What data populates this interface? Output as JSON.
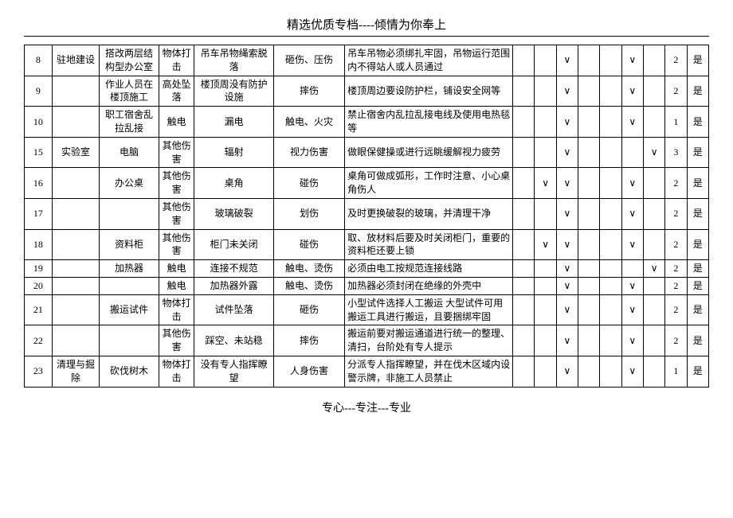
{
  "header": "精选优质专档----倾情为你奉上",
  "footer": "专心---专注---专业",
  "rows": [
    {
      "no": "8",
      "area": "驻地建设",
      "obj": "搭改两层结构型办公室",
      "type": "物体打击",
      "cause": "吊车吊物绳索脱落",
      "result": "砸伤、压伤",
      "measure": "吊车吊物必须绑扎牢固，吊物运行范围内不得站人或人员通过",
      "m": [
        "",
        "∨",
        "",
        "",
        "∨",
        "",
        "2",
        "是"
      ]
    },
    {
      "no": "9",
      "area": "",
      "obj": "作业人员在楼顶施工",
      "type": "高处坠落",
      "cause": "楼顶周没有防护设施",
      "result": "摔伤",
      "measure": "楼顶周边要设防护栏，铺设安全网等",
      "m": [
        "",
        "∨",
        "",
        "",
        "∨",
        "",
        "2",
        "是"
      ]
    },
    {
      "no": "10",
      "area": "",
      "obj": "职工宿舍乱拉乱接",
      "type": "触电",
      "cause": "漏电",
      "result": "触电、火灾",
      "measure": "禁止宿舍内乱拉乱接电线及使用电热毯等",
      "m": [
        "",
        "∨",
        "",
        "",
        "∨",
        "",
        "1",
        "是"
      ]
    },
    {
      "no": "15",
      "area": "实验室",
      "obj": "电脑",
      "type": "其他伤害",
      "cause": "辐射",
      "result": "视力伤害",
      "measure": "做眼保健操或进行远眺缓解视力疲劳",
      "m": [
        "",
        "∨",
        "",
        "",
        "",
        "∨",
        "3",
        "是"
      ]
    },
    {
      "no": "16",
      "area": "",
      "obj": "办公桌",
      "type": "其他伤害",
      "cause": "桌角",
      "result": "碰伤",
      "measure": "桌角可做成弧形，工作时注意、小心桌角伤人",
      "m": [
        "∨",
        "∨",
        "",
        "",
        "∨",
        "",
        "2",
        "是"
      ]
    },
    {
      "no": "17",
      "area": "",
      "obj": "",
      "type": "其他伤害",
      "cause": "玻璃破裂",
      "result": "划伤",
      "measure": "及时更换破裂的玻璃，并清理干净",
      "m": [
        "",
        "∨",
        "",
        "",
        "∨",
        "",
        "2",
        "是"
      ]
    },
    {
      "no": "18",
      "area": "",
      "obj": "资料柜",
      "type": "其他伤害",
      "cause": "柜门未关闭",
      "result": "碰伤",
      "measure": "取、放材料后要及时关闭柜门，重要的资料柜还要上锁",
      "m": [
        "∨",
        "∨",
        "",
        "",
        "∨",
        "",
        "2",
        "是"
      ]
    },
    {
      "no": "19",
      "area": "",
      "obj": "加热器",
      "type": "触电",
      "cause": "连接不规范",
      "result": "触电、烫伤",
      "measure": "必须由电工按规范连接线路",
      "m": [
        "",
        "∨",
        "",
        "",
        "",
        "∨",
        "2",
        "是"
      ]
    },
    {
      "no": "20",
      "area": "",
      "obj": "",
      "type": "触电",
      "cause": "加热器外露",
      "result": "触电、烫伤",
      "measure": "加热器必须封闭在绝缘的外壳中",
      "m": [
        "",
        "∨",
        "",
        "",
        "∨",
        "",
        "2",
        "是"
      ]
    },
    {
      "no": "21",
      "area": "",
      "obj": "搬运试件",
      "type": "物体打击",
      "cause": "试件坠落",
      "result": "砸伤",
      "measure": "小型试件选择人工搬运 大型试件可用搬运工具进行搬运，且要捆绑牢固",
      "m": [
        "",
        "∨",
        "",
        "",
        "∨",
        "",
        "2",
        "是"
      ]
    },
    {
      "no": "22",
      "area": "",
      "obj": "",
      "type": "其他伤害",
      "cause": "踩空、未站稳",
      "result": "摔伤",
      "measure": "搬运前要对搬运通道进行统一的整理、清扫，台阶处有专人提示",
      "m": [
        "",
        "∨",
        "",
        "",
        "∨",
        "",
        "2",
        "是"
      ]
    },
    {
      "no": "23",
      "area": "清理与掘除",
      "obj": "砍伐树木",
      "type": "物体打击",
      "cause": "没有专人指挥瞭望",
      "result": "人身伤害",
      "measure": "分派专人指挥瞭望，并在伐木区域内设警示牌，非施工人员禁止",
      "m": [
        "",
        "∨",
        "",
        "",
        "∨",
        "",
        "1",
        "是"
      ]
    }
  ]
}
